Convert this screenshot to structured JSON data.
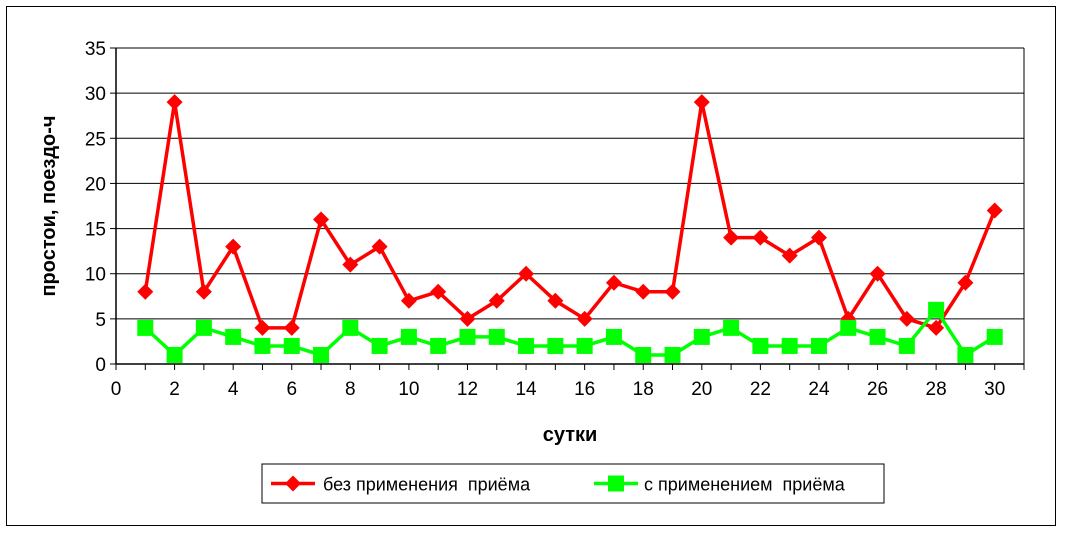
{
  "chart_data": {
    "type": "line",
    "title": "",
    "xlabel": "сутки",
    "ylabel": "простои, поездо-ч",
    "xlim": [
      0,
      31
    ],
    "ylim": [
      0,
      35
    ],
    "x_ticks": [
      "0",
      "2",
      "4",
      "6",
      "8",
      "10",
      "12",
      "14",
      "16",
      "18",
      "20",
      "22",
      "24",
      "26",
      "28",
      "30"
    ],
    "y_ticks": [
      "0",
      "5",
      "10",
      "15",
      "20",
      "25",
      "30",
      "35"
    ],
    "grid": true,
    "legend_position": "bottom",
    "x": [
      1,
      2,
      3,
      4,
      5,
      6,
      7,
      8,
      9,
      10,
      11,
      12,
      13,
      14,
      15,
      16,
      17,
      18,
      19,
      20,
      21,
      22,
      23,
      24,
      25,
      26,
      27,
      28,
      29,
      30
    ],
    "series": [
      {
        "name": "без применения  приёма",
        "color": "#ff0000",
        "marker": "diamond",
        "values": [
          8,
          29,
          8,
          13,
          4,
          4,
          16,
          11,
          13,
          7,
          8,
          5,
          7,
          10,
          7,
          5,
          9,
          8,
          8,
          29,
          14,
          14,
          12,
          14,
          5,
          10,
          5,
          4,
          9,
          17
        ]
      },
      {
        "name": "с применением  приёма",
        "color": "#00ff00",
        "marker": "square",
        "values": [
          4,
          1,
          4,
          3,
          2,
          2,
          1,
          4,
          2,
          3,
          2,
          3,
          3,
          2,
          2,
          2,
          3,
          1,
          1,
          3,
          4,
          2,
          2,
          2,
          4,
          3,
          2,
          6,
          1,
          3
        ]
      }
    ]
  }
}
